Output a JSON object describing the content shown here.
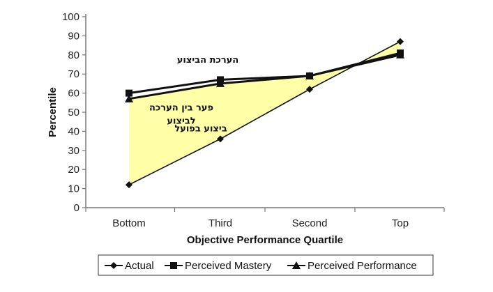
{
  "chart_data": {
    "type": "line",
    "categories": [
      "Bottom",
      "Third",
      "Second",
      "Top"
    ],
    "series": [
      {
        "name": "Actual",
        "values": [
          12,
          36,
          62,
          87
        ],
        "marker": "diamond"
      },
      {
        "name": "Perceived Mastery",
        "values": [
          60,
          67,
          69,
          81
        ],
        "marker": "square"
      },
      {
        "name": "Perceived Performance",
        "values": [
          57,
          65,
          69,
          80
        ],
        "marker": "triangle"
      }
    ],
    "xlabel": "Objective Performance Quartile",
    "ylabel": "Percentile",
    "ylim": [
      0,
      100
    ],
    "yticks": [
      0,
      10,
      20,
      30,
      40,
      50,
      60,
      70,
      80,
      90,
      100
    ],
    "grid": false,
    "legend": "bottom",
    "gap_fill_color": "#ffffa8",
    "annotations": [
      {
        "text": "הערכת הביצוע",
        "x": "Third",
        "y": 76
      },
      {
        "text": "פער בין הערכה",
        "x": "Bottom",
        "y": 51
      },
      {
        "text": "לביצוע",
        "x": "Bottom",
        "y": 44
      },
      {
        "text": "ביצוע בפועל",
        "x": "Third",
        "y": 40
      }
    ]
  }
}
